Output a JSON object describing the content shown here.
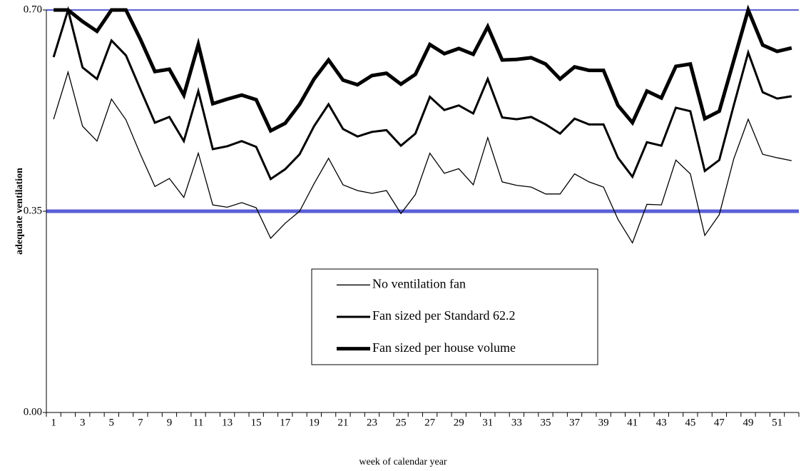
{
  "chart_data": {
    "type": "line",
    "xlabel": "week of calendar year",
    "ylabel": "adequate ventilation",
    "categories": [
      1,
      null,
      3,
      null,
      5,
      null,
      7,
      null,
      9,
      null,
      11,
      null,
      13,
      null,
      15,
      null,
      17,
      null,
      19,
      null,
      21,
      null,
      23,
      null,
      25,
      null,
      27,
      null,
      29,
      null,
      31,
      null,
      33,
      null,
      35,
      null,
      37,
      null,
      39,
      null,
      41,
      null,
      43,
      null,
      45,
      null,
      47,
      null,
      49,
      null,
      51,
      null
    ],
    "series": [
      {
        "name": "No ventilation fan",
        "color": "#000000",
        "values": [
          0.51,
          0.592,
          0.498,
          0.472,
          0.545,
          0.509,
          0.449,
          0.393,
          0.407,
          0.374,
          0.451,
          0.361,
          0.357,
          0.365,
          0.356,
          0.303,
          0.329,
          0.35,
          0.398,
          0.442,
          0.396,
          0.386,
          0.381,
          0.386,
          0.346,
          0.379,
          0.451,
          0.416,
          0.424,
          0.396,
          0.478,
          0.401,
          0.395,
          0.392,
          0.38,
          0.38,
          0.415,
          0.401,
          0.392,
          0.336,
          0.295,
          0.362,
          0.361,
          0.439,
          0.415,
          0.308,
          0.344,
          0.441,
          0.51,
          0.449,
          0.443,
          0.438
        ]
      },
      {
        "name": "Fan sized per Standard 62.2",
        "color": "#000000",
        "values": [
          0.618,
          0.7,
          0.6,
          0.58,
          0.647,
          0.621,
          0.562,
          0.504,
          0.514,
          0.472,
          0.559,
          0.458,
          0.463,
          0.472,
          0.462,
          0.406,
          0.423,
          0.449,
          0.498,
          0.536,
          0.493,
          0.48,
          0.488,
          0.491,
          0.464,
          0.485,
          0.549,
          0.526,
          0.534,
          0.52,
          0.58,
          0.513,
          0.51,
          0.514,
          0.501,
          0.485,
          0.511,
          0.501,
          0.501,
          0.443,
          0.41,
          0.47,
          0.464,
          0.53,
          0.524,
          0.42,
          0.439,
          0.534,
          0.626,
          0.557,
          0.546,
          0.55
        ]
      },
      {
        "name": "Fan sized per house volume",
        "color": "#000000",
        "values": [
          0.7,
          0.7,
          0.68,
          0.663,
          0.7,
          0.7,
          0.649,
          0.593,
          0.597,
          0.552,
          0.64,
          0.537,
          0.545,
          0.552,
          0.544,
          0.49,
          0.503,
          0.536,
          0.58,
          0.613,
          0.578,
          0.57,
          0.586,
          0.59,
          0.571,
          0.588,
          0.64,
          0.624,
          0.633,
          0.623,
          0.671,
          0.613,
          0.614,
          0.617,
          0.606,
          0.58,
          0.601,
          0.595,
          0.595,
          0.534,
          0.504,
          0.559,
          0.547,
          0.602,
          0.606,
          0.511,
          0.524,
          0.612,
          0.7,
          0.639,
          0.628,
          0.634
        ]
      }
    ],
    "ylim": [
      0,
      0.7
    ],
    "yticks": [
      {
        "value": 0,
        "label": "0.00"
      },
      {
        "value": 0.35,
        "label": "0.35"
      },
      {
        "value": 0.7,
        "label": "0.70"
      }
    ],
    "grid": true,
    "grid_color": "#5a5fd6",
    "legend": "center"
  }
}
